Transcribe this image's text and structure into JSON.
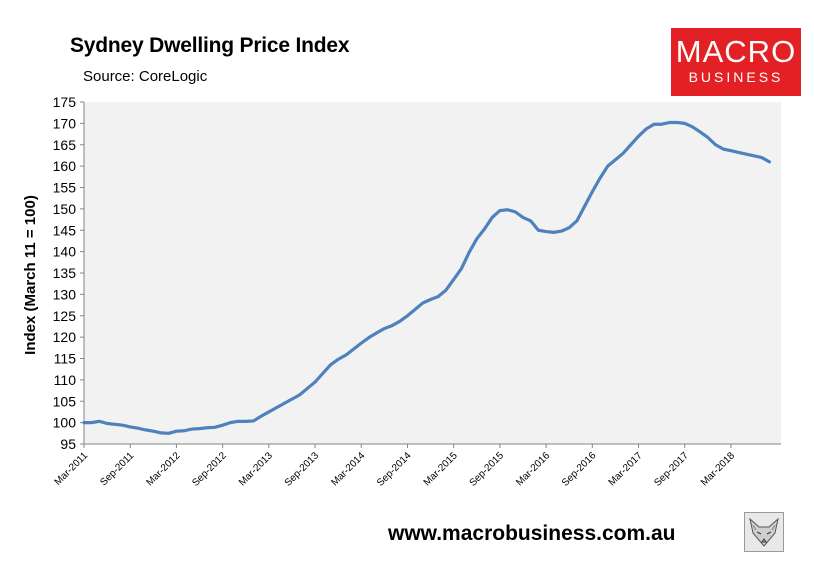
{
  "title": "Sydney Dwelling Price Index",
  "subtitle": "Source: CoreLogic",
  "logo": {
    "line1": "MACRO",
    "line2": "BUSINESS",
    "color": "#e32023"
  },
  "website": "www.macrobusiness.com.au",
  "fox_icon": "fox-sketch-icon",
  "chart_data": {
    "type": "line",
    "title": "Sydney Dwelling Price Index",
    "subtitle": "Source: CoreLogic",
    "xlabel": "",
    "ylabel": "Index (March 11 = 100)",
    "ylim": [
      95,
      175
    ],
    "yticks": [
      95,
      100,
      105,
      110,
      115,
      120,
      125,
      130,
      135,
      140,
      145,
      150,
      155,
      160,
      165,
      170,
      175
    ],
    "xticks": [
      "Mar-2011",
      "Sep-2011",
      "Mar-2012",
      "Sep-2012",
      "Mar-2013",
      "Sep-2013",
      "Mar-2014",
      "Sep-2014",
      "Mar-2015",
      "Sep-2015",
      "Mar-2016",
      "Sep-2016",
      "Mar-2017",
      "Sep-2017",
      "Mar-2018"
    ],
    "x_start": "Mar-2011",
    "x_end": "Aug-2018",
    "grid": false,
    "background": "#f2f2f2",
    "line_color": "#4f81bd",
    "series": [
      {
        "name": "",
        "frequency": "monthly",
        "values": [
          100.0,
          100.0,
          100.3,
          99.8,
          99.6,
          99.4,
          99.0,
          98.7,
          98.3,
          98.0,
          97.6,
          97.5,
          98.0,
          98.1,
          98.5,
          98.6,
          98.8,
          98.9,
          99.4,
          100.0,
          100.3,
          100.3,
          100.4,
          101.5,
          102.5,
          103.5,
          104.5,
          105.5,
          106.5,
          108.0,
          109.5,
          111.5,
          113.5,
          114.8,
          115.8,
          117.2,
          118.6,
          119.9,
          121.0,
          122.0,
          122.7,
          123.7,
          125.0,
          126.5,
          128.0,
          128.8,
          129.5,
          131.0,
          133.5,
          136.0,
          139.8,
          143.0,
          145.3,
          148.0,
          149.6,
          149.8,
          149.3,
          148.0,
          147.2,
          145.0,
          144.7,
          144.5,
          144.8,
          145.6,
          147.2,
          150.6,
          154.0,
          157.2,
          160.0,
          161.5,
          163.0,
          165.0,
          167.0,
          168.7,
          169.8,
          169.8,
          170.2,
          170.2,
          170.0,
          169.2,
          168.0,
          166.7,
          165.0,
          164.0,
          163.6,
          163.2,
          162.8,
          162.4,
          162.0,
          161.0
        ]
      }
    ]
  }
}
